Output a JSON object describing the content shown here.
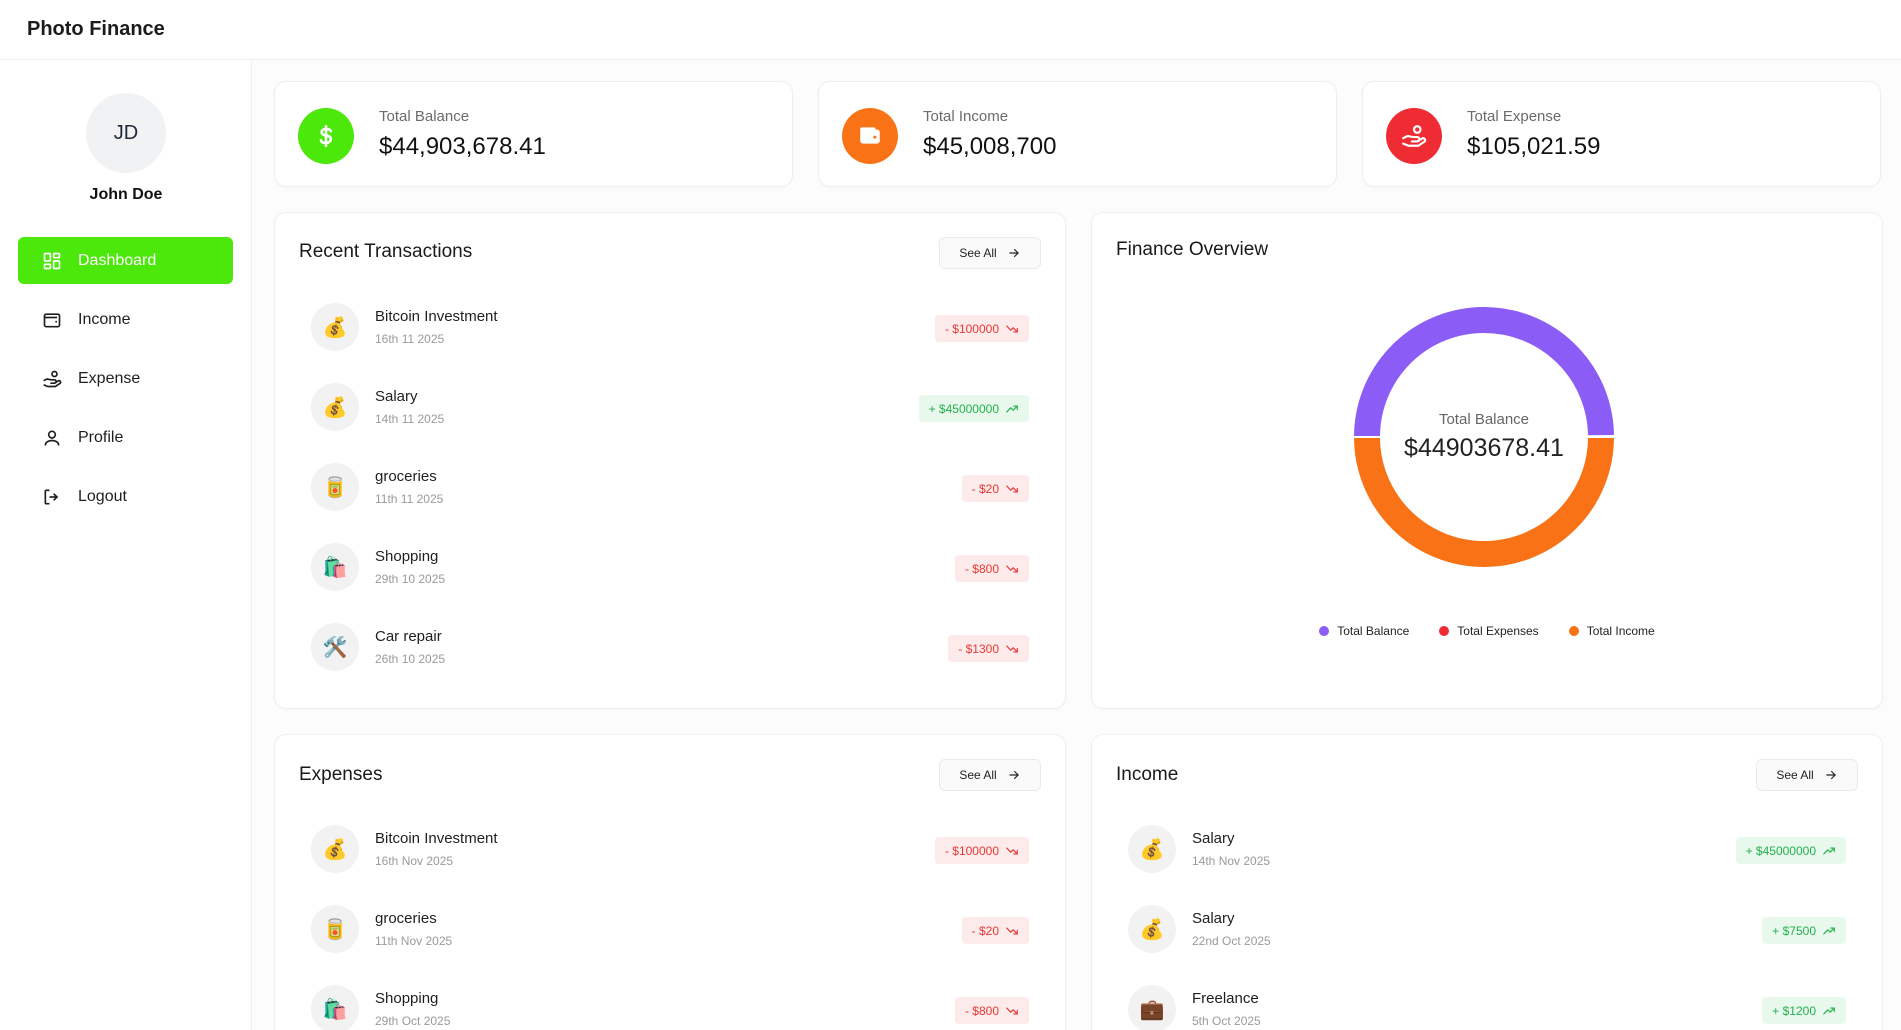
{
  "app": {
    "title": "Photo Finance"
  },
  "user": {
    "initials": "JD",
    "name": "John Doe"
  },
  "sidebar": {
    "items": [
      {
        "label": "Dashboard",
        "icon": "grid-icon"
      },
      {
        "label": "Income",
        "icon": "wallet-icon"
      },
      {
        "label": "Expense",
        "icon": "hand-coins-icon"
      },
      {
        "label": "Profile",
        "icon": "user-icon"
      },
      {
        "label": "Logout",
        "icon": "logout-icon"
      }
    ],
    "active_item": "Dashboard"
  },
  "stats": {
    "balance": {
      "label": "Total Balance",
      "value": "$44,903,678.41",
      "color": "#4de80b"
    },
    "income": {
      "label": "Total Income",
      "value": "$45,008,700",
      "color": "#f97316"
    },
    "expense": {
      "label": "Total Expense",
      "value": "$105,021.59",
      "color": "#ef2b34"
    }
  },
  "recent": {
    "title": "Recent Transactions",
    "see_all": "See All",
    "items": [
      {
        "icon": "💰",
        "name": "Bitcoin Investment",
        "date": "16th 11 2025",
        "amount": "- $100000"
      },
      {
        "icon": "💰",
        "name": "Salary",
        "date": "14th 11 2025",
        "amount": "+ $45000000"
      },
      {
        "icon": "🥫",
        "name": "groceries",
        "date": "11th 11 2025",
        "amount": "- $20"
      },
      {
        "icon": "🛍️",
        "name": "Shopping",
        "date": "29th 10 2025",
        "amount": "- $800"
      },
      {
        "icon": "🛠️",
        "name": "Car repair",
        "date": "26th 10 2025",
        "amount": "- $1300"
      }
    ]
  },
  "overview": {
    "title": "Finance Overview",
    "center_label": "Total Balance",
    "center_value": "$44903678.41",
    "legend": [
      {
        "label": "Total Balance",
        "color": "#8b5cf6"
      },
      {
        "label": "Total Expenses",
        "color": "#ef2b34"
      },
      {
        "label": "Total Income",
        "color": "#f97316"
      }
    ],
    "segments": [
      {
        "name": "Total Balance",
        "value": 44903678.41,
        "color": "#8b5cf6"
      },
      {
        "name": "Total Expenses",
        "value": 105021.59,
        "color": "#ef2b34"
      },
      {
        "name": "Total Income",
        "value": 45008700,
        "color": "#f97316"
      }
    ]
  },
  "expenses": {
    "title": "Expenses",
    "see_all": "See All",
    "items": [
      {
        "icon": "💰",
        "name": "Bitcoin Investment",
        "date": "16th Nov 2025",
        "amount": "- $100000"
      },
      {
        "icon": "🥫",
        "name": "groceries",
        "date": "11th Nov 2025",
        "amount": "- $20"
      },
      {
        "icon": "🛍️",
        "name": "Shopping",
        "date": "29th Oct 2025",
        "amount": "- $800"
      }
    ]
  },
  "income": {
    "title": "Income",
    "see_all": "See All",
    "items": [
      {
        "icon": "💰",
        "name": "Salary",
        "date": "14th Nov 2025",
        "amount": "+ $45000000"
      },
      {
        "icon": "💰",
        "name": "Salary",
        "date": "22nd Oct 2025",
        "amount": "+ $7500"
      },
      {
        "icon": "💼",
        "name": "Freelance",
        "date": "5th Oct 2025",
        "amount": "+ $1200"
      }
    ]
  }
}
